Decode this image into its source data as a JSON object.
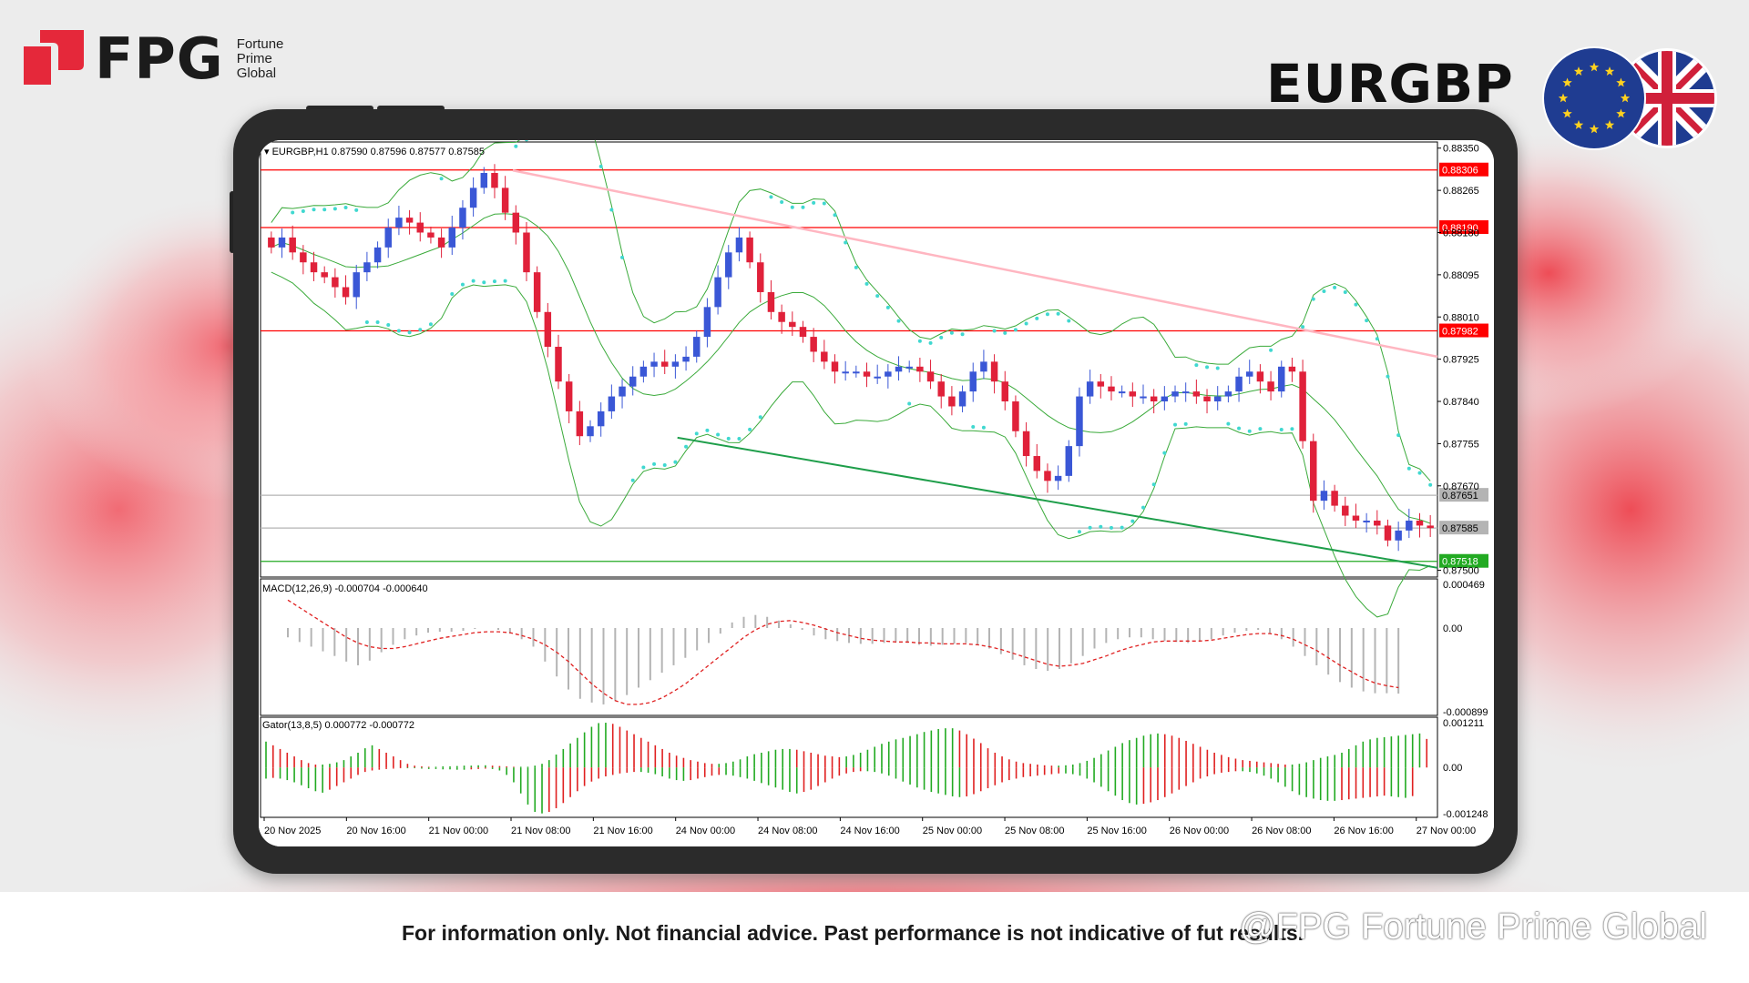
{
  "brand": {
    "logo_text": "FPG",
    "logo_subtitle": [
      "Fortune",
      "Prime",
      "Global"
    ],
    "accent_color": "#e5283a"
  },
  "symbol": "EURGBP",
  "flags": [
    "eu-flag-icon",
    "uk-flag-icon"
  ],
  "disclaimer": "For information only. Not financial advice. Past performance is not indicative of fut",
  "disclaimer_tail": "results.",
  "watermark": "@FPG Fortune Prime Global",
  "chart_data": [
    {
      "type": "candlestick",
      "title": "EURGBP,H1  0.87590 0.87596 0.87577 0.87585",
      "timeframe": "H1",
      "ohlc_last": {
        "open": 0.8759,
        "high": 0.87596,
        "low": 0.87577,
        "close": 0.87585
      },
      "y_tick_labels": [
        "0.88350",
        "0.88265",
        "0.88180",
        "0.88095",
        "0.88010",
        "0.87925",
        "0.87840",
        "0.87755",
        "0.87670",
        "0.87500"
      ],
      "ylim": [
        0.8749,
        0.88355
      ],
      "x_tick_labels": [
        "20 Nov 2025",
        "20 Nov 16:00",
        "21 Nov 00:00",
        "21 Nov 08:00",
        "21 Nov 16:00",
        "24 Nov 00:00",
        "24 Nov 08:00",
        "24 Nov 16:00",
        "25 Nov 00:00",
        "25 Nov 08:00",
        "25 Nov 16:00",
        "26 Nov 00:00",
        "26 Nov 08:00",
        "26 Nov 16:00",
        "27 Nov 00:00"
      ],
      "horizontal_levels": [
        {
          "label": "0.88306",
          "value": 0.88306,
          "color": "#ff0000"
        },
        {
          "label": "0.88190",
          "value": 0.8819,
          "color": "#ff0000"
        },
        {
          "label": "0.87982",
          "value": 0.87982,
          "color": "#ff0000"
        },
        {
          "label": "0.87651",
          "value": 0.87651,
          "color": "#b4b4b4"
        },
        {
          "label": "0.87585",
          "value": 0.87585,
          "color": "#b4b4b4"
        },
        {
          "label": "0.87518",
          "value": 0.87518,
          "color": "#22aa22"
        }
      ],
      "trendlines": [
        {
          "name": "resistance",
          "color": "#ffb6c1",
          "from": [
            "21 Nov 08:00",
            0.88305
          ],
          "to": [
            "27 Nov 04:00",
            0.8793
          ]
        },
        {
          "name": "support",
          "color": "#1e9e4a",
          "from": [
            "24 Nov 00:00",
            0.87767
          ],
          "to": [
            "27 Nov 04:00",
            0.87505
          ]
        }
      ],
      "up_color": "#3a57d6",
      "down_color": "#e0213a",
      "close_path": [
        0.8815,
        0.8817,
        0.8814,
        0.8812,
        0.881,
        0.8809,
        0.8807,
        0.8805,
        0.881,
        0.8812,
        0.8815,
        0.8819,
        0.8821,
        0.882,
        0.8818,
        0.8817,
        0.8815,
        0.8819,
        0.8823,
        0.8827,
        0.883,
        0.8827,
        0.8822,
        0.8818,
        0.881,
        0.8802,
        0.8795,
        0.8788,
        0.8782,
        0.8777,
        0.8779,
        0.8782,
        0.8785,
        0.8787,
        0.8789,
        0.8791,
        0.8792,
        0.8791,
        0.8792,
        0.8793,
        0.8797,
        0.8803,
        0.8809,
        0.8814,
        0.8817,
        0.8812,
        0.8806,
        0.8802,
        0.88,
        0.8799,
        0.8797,
        0.8794,
        0.8792,
        0.879,
        0.879,
        0.879,
        0.8789,
        0.8789,
        0.879,
        0.8791,
        0.8791,
        0.879,
        0.8788,
        0.8785,
        0.8783,
        0.8786,
        0.879,
        0.8792,
        0.8788,
        0.8784,
        0.8778,
        0.8773,
        0.877,
        0.8768,
        0.8769,
        0.8775,
        0.8785,
        0.8788,
        0.8787,
        0.8786,
        0.8786,
        0.8785,
        0.8785,
        0.8784,
        0.8785,
        0.8786,
        0.8786,
        0.8785,
        0.8784,
        0.8785,
        0.8786,
        0.8789,
        0.879,
        0.8788,
        0.8786,
        0.8791,
        0.879,
        0.8776,
        0.8764,
        0.8766,
        0.8763,
        0.8761,
        0.876,
        0.876,
        0.8759,
        0.8756,
        0.8758,
        0.876,
        0.8759,
        0.87585
      ],
      "parabolic_sar": {
        "color": "#40d8d0"
      },
      "bollinger": {
        "color": "#3aaa3a"
      }
    },
    {
      "type": "bar",
      "title": "MACD(12,26,9) -0.000704 -0.000640",
      "y_tick_labels": [
        "0.000469",
        "0.00",
        "-0.000899"
      ],
      "ylim": [
        -0.000899,
        0.000469
      ],
      "series": [
        {
          "values": [
            -0.0001,
            -0.00015,
            -0.0002,
            -0.00025,
            -0.0003,
            -0.00036,
            -0.0004,
            -0.00035,
            -0.00026,
            -0.00018,
            -0.00012,
            -8e-05,
            -5e-05,
            -4e-05,
            -4e-05,
            -3e-05,
            -1e-05,
            0.0,
            -2e-05,
            -6e-05,
            -0.00012,
            -0.0002,
            -0.00036,
            -0.00052,
            -0.00066,
            -0.00076,
            -0.0008,
            -0.00082,
            -0.00078,
            -0.00072,
            -0.00064,
            -0.00056,
            -0.00048,
            -0.0004,
            -0.00032,
            -0.00024,
            -0.00016,
            -6e-05,
            6e-05,
            0.00012,
            0.00014,
            0.00012,
            8e-05,
            4e-05,
            -2e-05,
            -8e-05,
            -0.00012,
            -0.00014,
            -0.00016,
            -0.00017,
            -0.00017,
            -0.00016,
            -0.00015,
            -0.00016,
            -0.00018,
            -0.00019,
            -0.00018,
            -0.00017,
            -0.00016,
            -0.00018,
            -0.00022,
            -0.00028,
            -0.00034,
            -0.0004,
            -0.00044,
            -0.00046,
            -0.00044,
            -0.00038,
            -0.0003,
            -0.00022,
            -0.00016,
            -0.00012,
            -0.0001,
            -0.0001,
            -0.00012,
            -0.00014,
            -0.00015,
            -0.00016,
            -0.00014,
            -0.00012,
            -8e-05,
            -5e-05,
            -3e-05,
            -2e-05,
            -6e-05,
            -0.00012,
            -0.0002,
            -0.0003,
            -0.0004,
            -0.0005,
            -0.00058,
            -0.00064,
            -0.00068,
            -0.0007,
            -0.0007,
            -0.000704
          ]
        },
        {
          "values": [
            0.0003,
            0.00022,
            0.00014,
            6e-05,
            -2e-05,
            -0.0001,
            -0.00016,
            -0.0002,
            -0.00022,
            -0.00022,
            -0.0002,
            -0.00017,
            -0.00014,
            -0.00011,
            -9e-05,
            -7e-05,
            -5e-05,
            -4e-05,
            -4e-05,
            -5e-05,
            -8e-05,
            -0.00012,
            -0.00018,
            -0.00026,
            -0.00036,
            -0.00048,
            -0.0006,
            -0.0007,
            -0.00078,
            -0.00082,
            -0.00082,
            -0.0008,
            -0.00075,
            -0.00068,
            -0.0006,
            -0.0005,
            -0.0004,
            -0.0003,
            -0.0002,
            -0.0001,
            -2e-05,
            4e-05,
            7e-05,
            8e-05,
            6e-05,
            3e-05,
            -1e-05,
            -5e-05,
            -8e-05,
            -0.00011,
            -0.00013,
            -0.00014,
            -0.00015,
            -0.00015,
            -0.00016,
            -0.00016,
            -0.00017,
            -0.00017,
            -0.00017,
            -0.00018,
            -0.0002,
            -0.00023,
            -0.00027,
            -0.00031,
            -0.00035,
            -0.00039,
            -0.00041,
            -0.0004,
            -0.00038,
            -0.00034,
            -0.0003,
            -0.00025,
            -0.00021,
            -0.00018,
            -0.00015,
            -0.00014,
            -0.00014,
            -0.00014,
            -0.00014,
            -0.00013,
            -0.00011,
            -9e-05,
            -7e-05,
            -6e-05,
            -6e-05,
            -8e-05,
            -0.00012,
            -0.00018,
            -0.00024,
            -0.00032,
            -0.0004,
            -0.00047,
            -0.00054,
            -0.00059,
            -0.00062,
            -0.00064
          ]
        }
      ],
      "colors": [
        "#b4b4b4",
        "#e02020"
      ]
    },
    {
      "type": "bar",
      "title": "Gator(13,8,5) 0.000772 -0.000772",
      "y_tick_labels": [
        "0.001211",
        "0.00",
        "-0.001248"
      ],
      "ylim": [
        -0.001248,
        0.001211
      ],
      "series": [
        {
          "values": [
            0.0007,
            0.0006,
            0.0005,
            0.0004,
            0.0003,
            0.0002,
            0.00012,
            8e-05,
            8e-05,
            0.0001,
            0.00014,
            0.0002,
            0.0003,
            0.0004,
            0.00052,
            0.0006,
            0.0005,
            0.0004,
            0.0003,
            0.0002,
            0.0001,
            5e-05,
            3e-05,
            2e-05,
            2e-05,
            3e-05,
            3e-05,
            4e-05,
            5e-05,
            5e-05,
            6e-05,
            6e-05,
            5e-05,
            4e-05,
            3e-05,
            2e-05,
            2e-05,
            2e-05,
            5e-05,
            0.0001,
            0.0002,
            0.00035,
            0.0005,
            0.00065,
            0.0008,
            0.00095,
            0.0011,
            0.0012,
            0.00121,
            0.00118,
            0.0011,
            0.001,
            0.0009,
            0.0008,
            0.0007,
            0.0006,
            0.0005,
            0.0004,
            0.00032,
            0.00026,
            0.0002,
            0.00016,
            0.00012,
            0.0001,
            0.0001,
            0.00012,
            0.00016,
            0.00022,
            0.0003,
            0.00036,
            0.0004,
            0.00044,
            0.00048,
            0.0005,
            0.0005,
            0.00048,
            0.00044,
            0.0004,
            0.00036,
            0.00032,
            0.0003,
            0.00028,
            0.0003,
            0.00034,
            0.0004,
            0.00048,
            0.00056,
            0.00064,
            0.0007,
            0.00076,
            0.0008,
            0.00085,
            0.0009,
            0.00096,
            0.001,
            0.00104,
            0.00106,
            0.00106,
            0.001,
            0.0009,
            0.00078,
            0.00066,
            0.00052,
            0.0004,
            0.0003,
            0.00022,
            0.00016,
            0.00012,
            0.0001,
            8e-05,
            6e-05,
            5e-05,
            5e-05,
            6e-05,
            8e-05,
            0.00012,
            0.00018,
            0.00026,
            0.00036,
            0.00046,
            0.00056,
            0.00066,
            0.00074,
            0.0008,
            0.00086,
            0.0009,
            0.00092,
            0.0009,
            0.00086,
            0.0008,
            0.00072,
            0.00064,
            0.00056,
            0.00048,
            0.0004,
            0.00034,
            0.00028,
            0.00024,
            0.0002,
            0.00018,
            0.00016,
            0.00014,
            0.00012,
            0.0001,
            8e-05,
            8e-05,
            0.0001,
            0.00014,
            0.0002,
            0.00026,
            0.0003,
            0.00034,
            0.0004,
            0.0005,
            0.0006,
            0.0007,
            0.00076,
            0.0008,
            0.00082,
            0.00084,
            0.00086,
            0.00088,
            0.0009,
            0.00092,
            0.000772
          ]
        },
        {
          "values": [
            -0.0003,
            -0.00028,
            -0.0003,
            -0.00034,
            -0.0004,
            -0.00048,
            -0.00056,
            -0.00064,
            -0.00068,
            -0.0006,
            -0.0005,
            -0.0004,
            -0.0003,
            -0.0002,
            -0.00012,
            -8e-05,
            -6e-05,
            -4e-05,
            -3e-05,
            -2e-05,
            -2e-05,
            -2e-05,
            -3e-05,
            -4e-05,
            -4e-05,
            -5e-05,
            -5e-05,
            -6e-05,
            -6e-05,
            -5e-05,
            -4e-05,
            -3e-05,
            -4e-05,
            -8e-05,
            -0.0002,
            -0.0004,
            -0.0007,
            -0.001,
            -0.0012,
            -0.00124,
            -0.0012,
            -0.0011,
            -0.00096,
            -0.0008,
            -0.00064,
            -0.0005,
            -0.00038,
            -0.0003,
            -0.00024,
            -0.0002,
            -0.00016,
            -0.00014,
            -0.00012,
            -0.00012,
            -0.00014,
            -0.00018,
            -0.00024,
            -0.0003,
            -0.00034,
            -0.00036,
            -0.00034,
            -0.0003,
            -0.00026,
            -0.00022,
            -0.0002,
            -0.0002,
            -0.00022,
            -0.00026,
            -0.0003,
            -0.00036,
            -0.00042,
            -0.00048,
            -0.00054,
            -0.0006,
            -0.00066,
            -0.0007,
            -0.00066,
            -0.0006,
            -0.0005,
            -0.0004,
            -0.0003,
            -0.00022,
            -0.00016,
            -0.00012,
            -0.0001,
            -0.0001,
            -0.00012,
            -0.00016,
            -0.00022,
            -0.0003,
            -0.00038,
            -0.00046,
            -0.00054,
            -0.0006,
            -0.00066,
            -0.0007,
            -0.00074,
            -0.00078,
            -0.0008,
            -0.00078,
            -0.00072,
            -0.00064,
            -0.00056,
            -0.00048,
            -0.0004,
            -0.00034,
            -0.0003,
            -0.00026,
            -0.00024,
            -0.00022,
            -0.0002,
            -0.00018,
            -0.00016,
            -0.00016,
            -0.00018,
            -0.00022,
            -0.0003,
            -0.0004,
            -0.00052,
            -0.00064,
            -0.00076,
            -0.00088,
            -0.00096,
            -0.001,
            -0.00098,
            -0.00094,
            -0.00088,
            -0.0008,
            -0.0007,
            -0.0006,
            -0.0005,
            -0.0004,
            -0.0003,
            -0.00024,
            -0.00018,
            -0.00014,
            -0.00012,
            -0.0001,
            -0.0001,
            -0.00012,
            -0.00016,
            -0.00022,
            -0.0003,
            -0.0004,
            -0.00052,
            -0.00064,
            -0.00074,
            -0.0008,
            -0.00084,
            -0.00088,
            -0.0009,
            -0.0009,
            -0.00088,
            -0.00086,
            -0.00084,
            -0.00082,
            -0.0008,
            -0.00078,
            -0.00076,
            -0.00078,
            -0.0008,
            -0.00082,
            -0.000772
          ]
        }
      ],
      "colors": [
        "#22aa22",
        "#e02020"
      ]
    }
  ]
}
